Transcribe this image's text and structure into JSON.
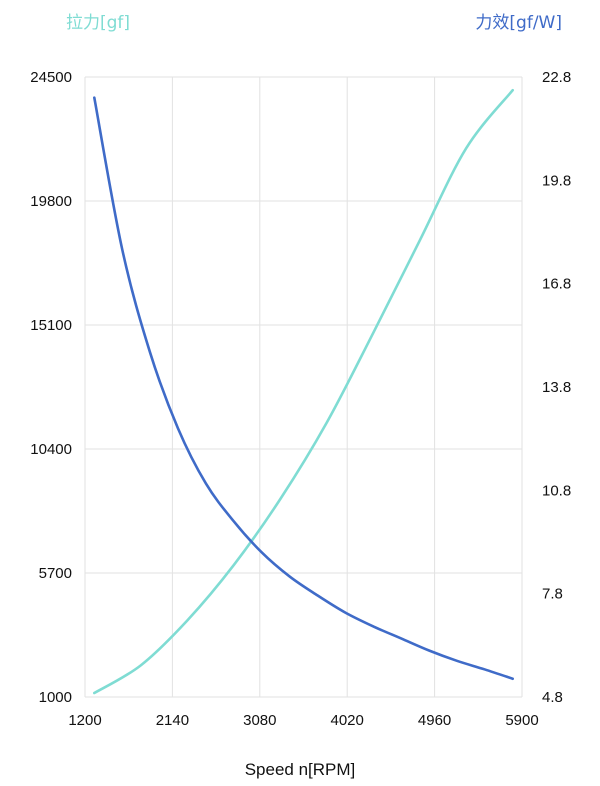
{
  "chart_data": {
    "type": "line",
    "left_axis_title": "拉力[gf]",
    "right_axis_title": "力效[gf/W]",
    "xlabel": "Speed n[RPM]",
    "xlim": [
      1200,
      5900
    ],
    "x_ticks": [
      "1200",
      "2140",
      "3080",
      "4020",
      "4960",
      "5900"
    ],
    "y_left_lim": [
      1000,
      24500
    ],
    "y_left_ticks": [
      "1000",
      "5700",
      "10400",
      "15100",
      "19800",
      "24500"
    ],
    "y_right_lim": [
      4.8,
      22.8
    ],
    "y_right_ticks": [
      "4.8",
      "7.8",
      "10.8",
      "13.8",
      "16.8",
      "19.8",
      "22.8"
    ],
    "grid": true,
    "series": [
      {
        "axis": "left",
        "color": "#7fdcd3",
        "points": [
          [
            1300,
            1150
          ],
          [
            1800,
            2200
          ],
          [
            2300,
            3900
          ],
          [
            2800,
            6000
          ],
          [
            3300,
            8500
          ],
          [
            3800,
            11400
          ],
          [
            4300,
            14800
          ],
          [
            4800,
            18300
          ],
          [
            5300,
            21800
          ],
          [
            5800,
            24000
          ]
        ]
      },
      {
        "axis": "right",
        "color": "#3f6bc8",
        "points": [
          [
            1300,
            22.2
          ],
          [
            1600,
            17.8
          ],
          [
            1900,
            14.8
          ],
          [
            2200,
            12.6
          ],
          [
            2500,
            11.0
          ],
          [
            2800,
            9.9
          ],
          [
            3100,
            9.0
          ],
          [
            3400,
            8.3
          ],
          [
            3700,
            7.75
          ],
          [
            4000,
            7.25
          ],
          [
            4300,
            6.85
          ],
          [
            4600,
            6.5
          ],
          [
            4900,
            6.15
          ],
          [
            5200,
            5.85
          ],
          [
            5500,
            5.6
          ],
          [
            5800,
            5.33
          ]
        ]
      }
    ],
    "colors": {
      "left_title": "#7fdcd3",
      "right_title": "#3f6bc8",
      "grid": "#e2e2e2"
    }
  }
}
